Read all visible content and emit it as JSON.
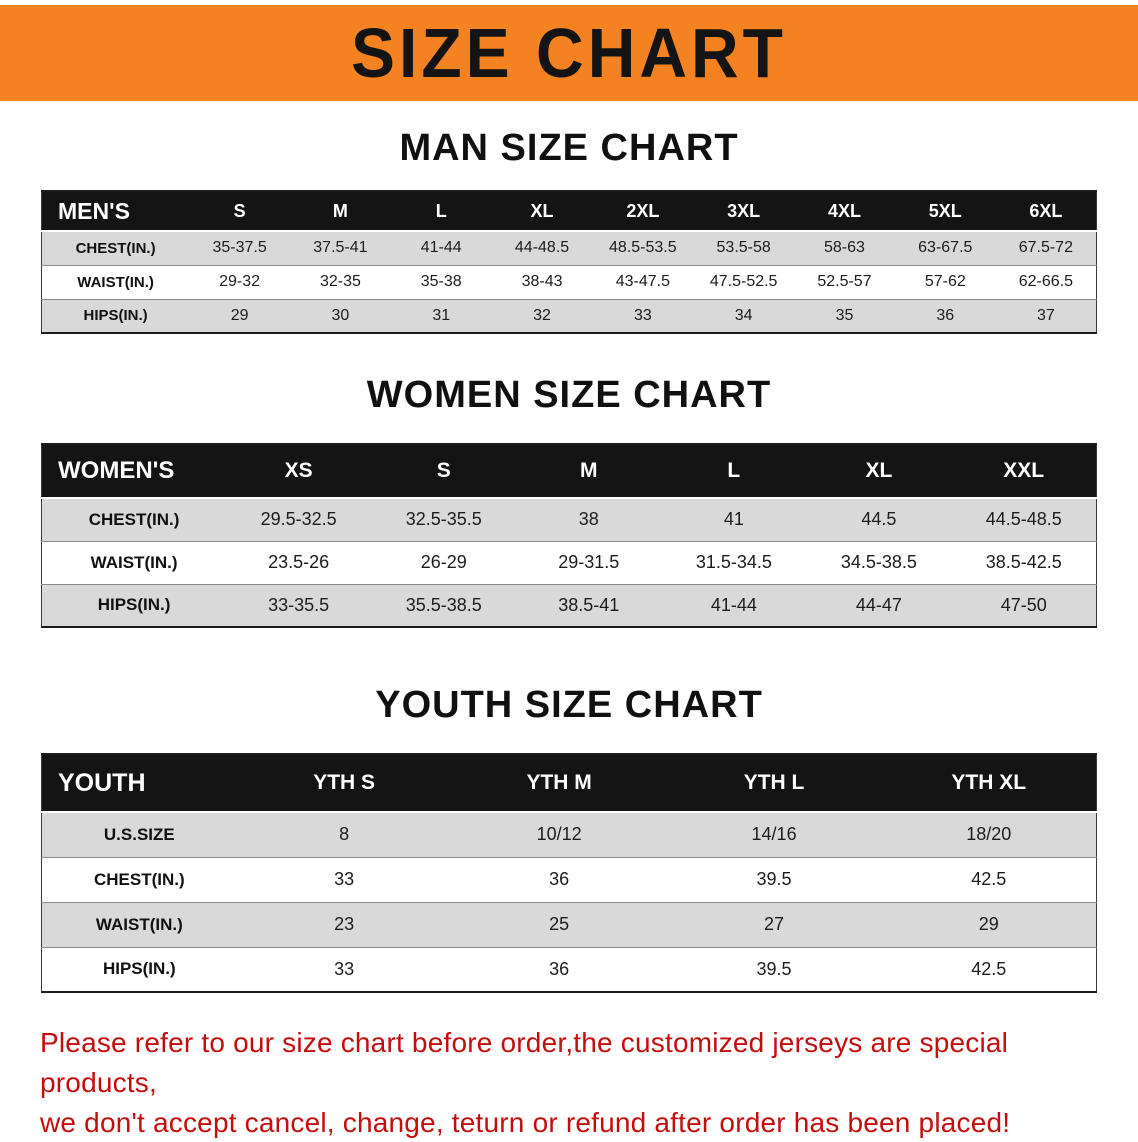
{
  "banner": {
    "title": "SIZE CHART",
    "bg_color": "#f58220"
  },
  "sections": [
    {
      "id": "men",
      "heading": "MAN SIZE CHART",
      "table": {
        "header": [
          "MEN'S",
          "S",
          "M",
          "L",
          "XL",
          "2XL",
          "3XL",
          "4XL",
          "5XL",
          "6XL"
        ],
        "rows": [
          [
            "CHEST(IN.)",
            "35-37.5",
            "37.5-41",
            "41-44",
            "44-48.5",
            "48.5-53.5",
            "53.5-58",
            "58-63",
            "63-67.5",
            "67.5-72"
          ],
          [
            "WAIST(IN.)",
            "29-32",
            "32-35",
            "35-38",
            "38-43",
            "43-47.5",
            "47.5-52.5",
            "52.5-57",
            "57-62",
            "62-66.5"
          ],
          [
            "HIPS(IN.)",
            "29",
            "30",
            "31",
            "32",
            "33",
            "34",
            "35",
            "36",
            "37"
          ]
        ]
      }
    },
    {
      "id": "women",
      "heading": "WOMEN SIZE CHART",
      "table": {
        "header": [
          "WOMEN'S",
          "XS",
          "S",
          "M",
          "L",
          "XL",
          "XXL"
        ],
        "rows": [
          [
            "CHEST(IN.)",
            "29.5-32.5",
            "32.5-35.5",
            "38",
            "41",
            "44.5",
            "44.5-48.5"
          ],
          [
            "WAIST(IN.)",
            "23.5-26",
            "26-29",
            "29-31.5",
            "31.5-34.5",
            "34.5-38.5",
            "38.5-42.5"
          ],
          [
            "HIPS(IN.)",
            "33-35.5",
            "35.5-38.5",
            "38.5-41",
            "41-44",
            "44-47",
            "47-50"
          ]
        ]
      }
    },
    {
      "id": "youth",
      "heading": "YOUTH SIZE CHART",
      "table": {
        "header": [
          "YOUTH",
          "YTH S",
          "YTH M",
          "YTH L",
          "YTH XL"
        ],
        "rows": [
          [
            "U.S.SIZE",
            "8",
            "10/12",
            "14/16",
            "18/20"
          ],
          [
            "CHEST(IN.)",
            "33",
            "36",
            "39.5",
            "42.5"
          ],
          [
            "WAIST(IN.)",
            "23",
            "25",
            "27",
            "29"
          ],
          [
            "HIPS(IN.)",
            "33",
            "36",
            "39.5",
            "42.5"
          ]
        ]
      }
    }
  ],
  "footer_note": {
    "line1": "Please refer to our size chart before order,the customized jerseys are special products,",
    "line2": "we don't accept cancel, change, teturn or refund after order has been placed!",
    "text_color": "#c40d0d"
  }
}
